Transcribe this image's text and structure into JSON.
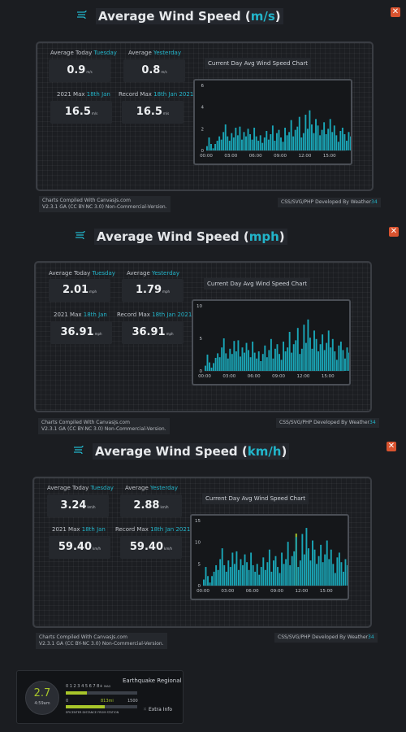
{
  "sections": [
    {
      "title_prefix": "Average Wind Speed (",
      "title_unit": "m/s",
      "title_suffix": ")",
      "avg_today_label": "Average Today",
      "avg_today_day": "Tuesday",
      "avg_today_value": "0.9",
      "avg_yesterday_label": "Average",
      "avg_yesterday_day": "Yesterday",
      "avg_yesterday_value": "0.8",
      "year_max_label": "2021 Max",
      "year_max_date": "18th Jan",
      "year_max_value": "16.5",
      "record_max_label": "Record Max",
      "record_max_date": "18th Jan 2021",
      "record_max_value": "16.5",
      "unit": "m/s",
      "chart_title": "Current Day Avg Wind Speed Chart",
      "credit_line1": "Charts Compiled With CanvasJs.com",
      "credit_line2": "V2.3.1 GA (CC BY-NC 3.0) Non-Commercial-Version.",
      "credit_right_prefix": "CSS/SVG/PHP Developed By Weather",
      "credit_right_suffix": "34"
    },
    {
      "title_prefix": "Average Wind Speed (",
      "title_unit": "mph",
      "title_suffix": ")",
      "avg_today_label": "Average Today",
      "avg_today_day": "Tuesday",
      "avg_today_value": "2.01",
      "avg_yesterday_label": "Average",
      "avg_yesterday_day": "Yesterday",
      "avg_yesterday_value": "1.79",
      "year_max_label": "2021 Max",
      "year_max_date": "18th Jan",
      "year_max_value": "36.91",
      "record_max_label": "Record Max",
      "record_max_date": "18th Jan 2021",
      "record_max_value": "36.91",
      "unit": "mph",
      "chart_title": "Current Day Avg Wind Speed Chart",
      "credit_line1": "Charts Compiled With CanvasJs.com",
      "credit_line2": "V2.3.1 GA (CC BY-NC 3.0) Non-Commercial-Version.",
      "credit_right_prefix": "CSS/SVG/PHP Developed By Weather",
      "credit_right_suffix": "34"
    },
    {
      "title_prefix": "Average Wind Speed (",
      "title_unit": "km/h",
      "title_suffix": ")",
      "avg_today_label": "Average Today",
      "avg_today_day": "Tuesday",
      "avg_today_value": "3.24",
      "avg_yesterday_label": "Average",
      "avg_yesterday_day": "Yesterday",
      "avg_yesterday_value": "2.88",
      "year_max_label": "2021 Max",
      "year_max_date": "18th Jan",
      "year_max_value": "59.40",
      "record_max_label": "Record Max",
      "record_max_date": "18th Jan 2021",
      "record_max_value": "59.40",
      "unit": "km/h",
      "chart_title": "Current Day Avg Wind Speed Chart",
      "credit_line1": "Charts Compiled With CanvasJs.com",
      "credit_line2": "V2.3.1 GA (CC BY-NC 3.0) Non-Commercial-Version.",
      "credit_right_prefix": "CSS/SVG/PHP Developed By Weather",
      "credit_right_suffix": "34"
    }
  ],
  "close_label": "✕",
  "earthquake": {
    "magnitude": "2.7",
    "time": "4:59am",
    "title": "Earthquake Regional",
    "mag_scale": "0 1 2 3 4 5 6 7 8+",
    "mag_label": "MAG",
    "distance_min": "0",
    "distance_value": "813mi",
    "distance_max": "1500",
    "distance_label": "EPICENTER DISTANCE FROM STATION",
    "extra_info": "Extra Info",
    "magnitude_fraction": 0.3,
    "distance_fraction": 0.54
  },
  "colors": {
    "accent": "#22b4c9",
    "bar": "#1aa6b7",
    "highlight_bar": "#a8c62a",
    "close": "#d9532f",
    "background": "#1b1d21"
  },
  "chart_data": [
    {
      "type": "bar",
      "title": "Current Day Avg Wind Speed Chart",
      "x_tick_labels": [
        "00:00",
        "03:00",
        "06:00",
        "09:00",
        "12:00",
        "15:00"
      ],
      "x_range_hours": [
        0,
        17
      ],
      "ylim": [
        0,
        6
      ],
      "y_ticks": [
        "0",
        "2",
        "4",
        "6"
      ],
      "grid": false,
      "interval_minutes": 15,
      "values": [
        0.4,
        1.2,
        0.6,
        0.2,
        0.6,
        0.9,
        1.3,
        1.0,
        1.7,
        2.4,
        1.3,
        0.9,
        1.6,
        1.2,
        2.1,
        1.4,
        2.2,
        1.0,
        1.7,
        1.3,
        2.0,
        1.5,
        1.0,
        2.1,
        1.3,
        0.9,
        1.4,
        0.7,
        1.2,
        1.8,
        1.0,
        1.5,
        2.3,
        0.9,
        1.6,
        1.9,
        1.2,
        0.8,
        2.1,
        1.4,
        1.7,
        2.8,
        1.3,
        1.9,
        2.2,
        3.1,
        1.2,
        1.6,
        3.3,
        2.0,
        3.7,
        2.4,
        1.6,
        2.9,
        2.3,
        1.4,
        1.9,
        2.6,
        1.5,
        2.0,
        2.9,
        1.7,
        2.3,
        1.4,
        0.8,
        1.8,
        2.1,
        1.5,
        0.9,
        1.7,
        1.3,
        0.7,
        1.2,
        1.9,
        1.4,
        0.8,
        1.5,
        1.1,
        1.7,
        1.3,
        0.9,
        1.6,
        2.1,
        1.2,
        0.8,
        1.9,
        1.4,
        0.9,
        1.8,
        2.2,
        1.5,
        1.1,
        1.7,
        1.3,
        2.0,
        1.6,
        1.2,
        1.9,
        2.3,
        1.5,
        2.0,
        2.2,
        1.8,
        1.4,
        2.1,
        1.6,
        1.8,
        2.0
      ]
    },
    {
      "type": "bar",
      "title": "Current Day Avg Wind Speed Chart",
      "x_tick_labels": [
        "00:00",
        "03:00",
        "06:00",
        "09:00",
        "12:00",
        "15:00"
      ],
      "x_range_hours": [
        0,
        17
      ],
      "ylim": [
        0,
        10
      ],
      "y_ticks": [
        "0",
        "5",
        "10"
      ],
      "grid": false,
      "interval_minutes": 15,
      "values": [
        0.8,
        2.5,
        1.3,
        0.5,
        1.2,
        2.0,
        2.7,
        2.1,
        3.6,
        5.0,
        2.7,
        1.9,
        3.4,
        2.6,
        4.6,
        3.0,
        4.7,
        2.2,
        3.6,
        2.8,
        4.3,
        3.2,
        2.1,
        4.5,
        2.8,
        1.9,
        3.0,
        1.5,
        2.6,
        3.9,
        2.1,
        3.2,
        4.9,
        1.9,
        3.4,
        4.1,
        2.6,
        1.7,
        4.5,
        3.0,
        3.6,
        6.0,
        2.8,
        4.1,
        4.7,
        6.6,
        2.6,
        3.4,
        7.1,
        4.3,
        7.9,
        5.1,
        3.4,
        6.2,
        4.9,
        3.0,
        4.1,
        5.6,
        3.2,
        4.3,
        6.2,
        3.6,
        4.9,
        3.0,
        1.7,
        3.9,
        4.5,
        3.2,
        1.9,
        3.6,
        2.8,
        1.5,
        2.6,
        4.1,
        3.0,
        1.7,
        3.2,
        2.4,
        3.6,
        2.8,
        1.9,
        3.4,
        4.5,
        2.6,
        1.7,
        4.1,
        3.0,
        1.9,
        3.9,
        4.7,
        3.2,
        2.4,
        3.6,
        2.8,
        4.3,
        3.4,
        2.6,
        4.1,
        4.9,
        3.2,
        4.3,
        4.7,
        3.9,
        3.0,
        4.5,
        3.4,
        3.9,
        4.3
      ]
    },
    {
      "type": "bar",
      "title": "Current Day Avg Wind Speed Chart",
      "x_tick_labels": [
        "00:00",
        "03:00",
        "06:00",
        "09:00",
        "12:00",
        "15:00"
      ],
      "x_range_hours": [
        0,
        17
      ],
      "ylim": [
        0,
        15
      ],
      "y_ticks": [
        "0",
        "5",
        "10",
        "15"
      ],
      "grid": false,
      "interval_minutes": 15,
      "highlight_series_name": "",
      "values": [
        1.4,
        4.3,
        2.2,
        0.7,
        2.2,
        3.2,
        4.7,
        3.6,
        6.1,
        8.6,
        4.7,
        3.2,
        5.8,
        4.3,
        7.6,
        5.0,
        7.9,
        3.6,
        6.1,
        4.7,
        7.2,
        5.4,
        3.6,
        7.6,
        4.7,
        3.2,
        5.0,
        2.5,
        4.3,
        6.5,
        3.6,
        5.4,
        8.3,
        3.2,
        5.8,
        6.8,
        4.3,
        2.9,
        7.6,
        5.0,
        6.1,
        10.1,
        4.7,
        6.8,
        7.9,
        11.2,
        4.3,
        5.8,
        11.9,
        7.2,
        13.3,
        8.6,
        5.8,
        10.4,
        8.3,
        5.0,
        6.8,
        9.4,
        5.4,
        7.2,
        10.4,
        6.1,
        8.3,
        5.0,
        2.9,
        6.5,
        7.6,
        5.4,
        3.2,
        6.1,
        4.7,
        2.5,
        4.3,
        6.8,
        5.0,
        2.9,
        5.4,
        4.0,
        6.1,
        4.7,
        3.2,
        5.8,
        7.6,
        4.3,
        2.9,
        6.8,
        5.0,
        3.2,
        6.5,
        7.9,
        5.4,
        4.0,
        6.1,
        4.7,
        7.2,
        5.8,
        4.3,
        6.8,
        8.3,
        5.4,
        7.2,
        7.9,
        6.5,
        5.0,
        7.6,
        5.8,
        6.5,
        7.2
      ],
      "gust_values": [
        0,
        0,
        0,
        0,
        0,
        0,
        0,
        0,
        0,
        0,
        0,
        0,
        0,
        0,
        0,
        0,
        0,
        0,
        0,
        0,
        0,
        0,
        0,
        0,
        0,
        0,
        0,
        0,
        0,
        0,
        0,
        0,
        0,
        0,
        0,
        0,
        0,
        0,
        0,
        0,
        0,
        0,
        0,
        0,
        0,
        12.0,
        0,
        0,
        0,
        0,
        8.0,
        0,
        0,
        0,
        0,
        0,
        0,
        0,
        0,
        0,
        0,
        0,
        0,
        0,
        0,
        0,
        0,
        0,
        0,
        0,
        0,
        0,
        0,
        0,
        0,
        0,
        0,
        0,
        0,
        0,
        0,
        0,
        0,
        0,
        0,
        0,
        0,
        0,
        0,
        0,
        0,
        0,
        0,
        0,
        0,
        0,
        0,
        0,
        0,
        0,
        0,
        0,
        0,
        0,
        0,
        0,
        0,
        0
      ]
    }
  ]
}
